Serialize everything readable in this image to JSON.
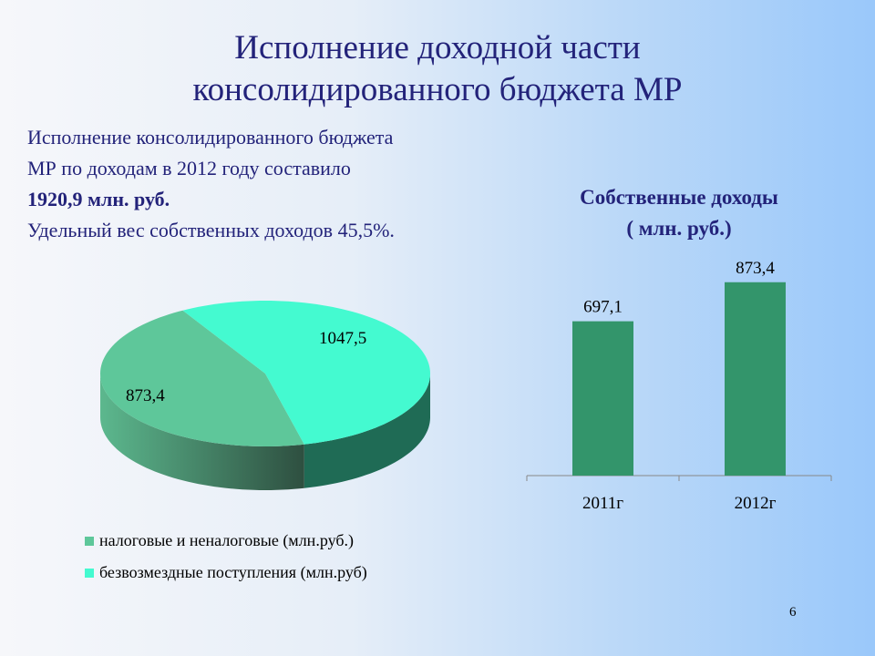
{
  "title": {
    "line1": "Исполнение доходной части",
    "line2": "консолидированного бюджета МР"
  },
  "summary": {
    "line1": "Исполнение консолидированного бюджета",
    "line2": "МР по доходам в 2012 году составило",
    "line3_bold": "1920,9 млн. руб.",
    "line4": "Удельный вес собственных доходов 45,5%."
  },
  "page_number": "6",
  "chart_data": [
    {
      "type": "pie",
      "title": "",
      "slices": [
        {
          "label": "налоговые и неналоговые (млн.руб.)",
          "value": 873.4,
          "display": "873,4",
          "color": "#5ec79a"
        },
        {
          "label": "безвозмездные поступления (млн.руб)",
          "value": 1047.5,
          "display": "1047,5",
          "color": "#44fad0"
        }
      ],
      "legend_position": "bottom"
    },
    {
      "type": "bar",
      "title_line1": "Собственные доходы",
      "title_line2": "( млн. руб.)",
      "categories": [
        "2011г",
        "2012г"
      ],
      "values": [
        697.1,
        873.4
      ],
      "labels": [
        "697,1",
        "873,4"
      ],
      "color": "#33956b",
      "ylim": [
        0,
        1000
      ],
      "grid": false
    }
  ]
}
